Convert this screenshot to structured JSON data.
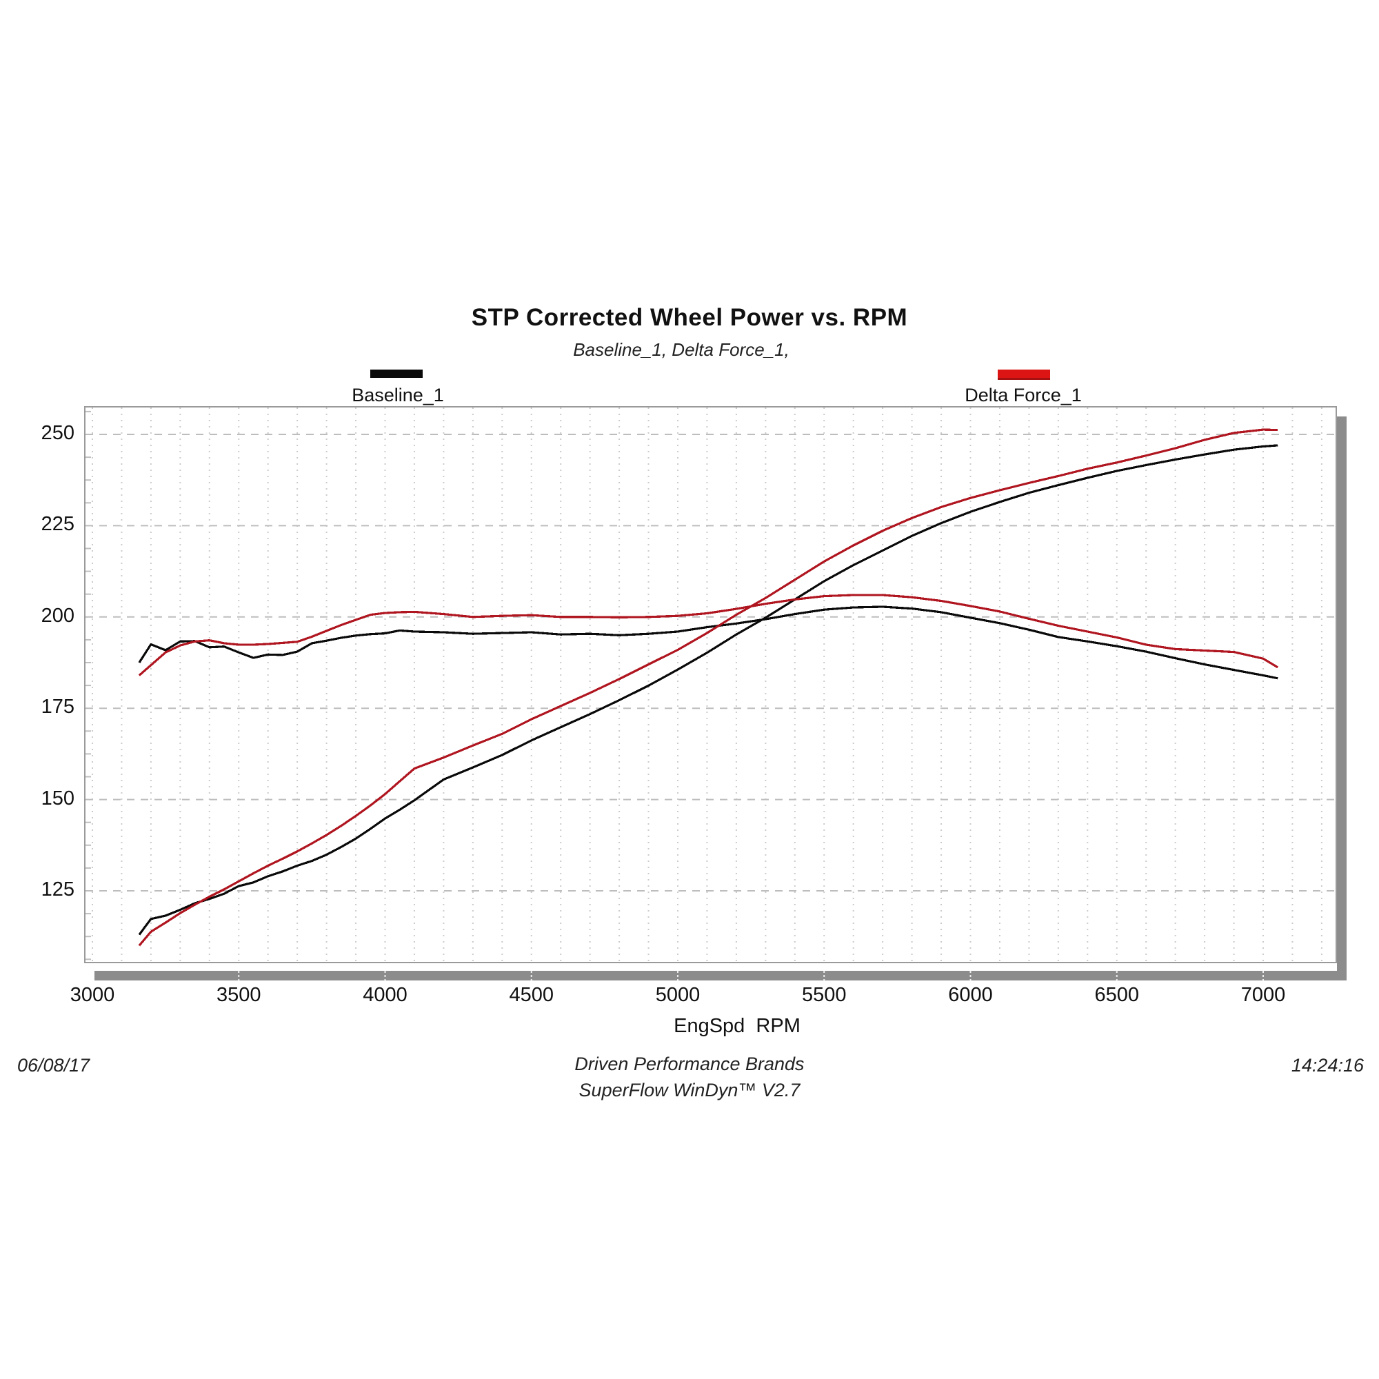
{
  "title": "STP Corrected Wheel Power vs. RPM",
  "subtitle": "Baseline_1, Delta Force_1,",
  "legend": {
    "items": [
      {
        "label": "Baseline_1",
        "color": "#0a0a0a",
        "border": "#000000"
      },
      {
        "label": "Delta Force_1",
        "color": "#dc1414",
        "border": "#a51010"
      }
    ]
  },
  "footer": {
    "date": "06/08/17",
    "time": "14:24:16",
    "brand_line": "Driven Performance Brands",
    "software_line": "SuperFlow WinDyn™ V2.7"
  },
  "chart_data": {
    "type": "line",
    "title": "STP Corrected Wheel Power vs. RPM",
    "xlabel": "EngSpd  RPM",
    "ylabel": "",
    "x_ticks": [
      3000,
      3500,
      4000,
      4500,
      5000,
      5500,
      6000,
      6500,
      7000
    ],
    "y_ticks": [
      125,
      150,
      175,
      200,
      225,
      250
    ],
    "x_minor_step": 100,
    "y_minor_tick_step": 6.25,
    "xlim": [
      2972,
      7255
    ],
    "ylim": [
      103.5,
      258.5
    ],
    "grid": "dashed",
    "legend_position": "top",
    "colors": {
      "baseline": "#0a0a0a",
      "delta_force": "#b01620"
    },
    "x": [
      3160,
      3200,
      3250,
      3300,
      3350,
      3400,
      3450,
      3500,
      3550,
      3600,
      3650,
      3700,
      3750,
      3800,
      3850,
      3900,
      3950,
      4000,
      4050,
      4100,
      4200,
      4300,
      4400,
      4500,
      4600,
      4700,
      4800,
      4900,
      5000,
      5100,
      5200,
      5300,
      5400,
      5500,
      5600,
      5700,
      5800,
      5900,
      6000,
      6100,
      6200,
      6300,
      6400,
      6500,
      6600,
      6700,
      6800,
      6900,
      7000,
      7050
    ],
    "series": [
      {
        "name": "Baseline_1",
        "kind": "power",
        "color": "#0a0a0a",
        "values": [
          113.0,
          117.3,
          118.2,
          119.8,
          121.6,
          122.8,
          124.2,
          126.3,
          127.3,
          129.0,
          130.3,
          131.9,
          133.2,
          134.9,
          137.0,
          139.3,
          142.0,
          144.8,
          147.2,
          149.8,
          155.5,
          158.8,
          162.2,
          166.2,
          169.8,
          173.4,
          177.2,
          181.2,
          185.6,
          190.2,
          195.2,
          199.8,
          204.8,
          209.8,
          214.2,
          218.2,
          222.2,
          225.7,
          228.8,
          231.5,
          234.0,
          236.1,
          238.1,
          240.0,
          241.6,
          243.1,
          244.5,
          245.8,
          246.7,
          247.0
        ]
      },
      {
        "name": "Delta Force_1",
        "kind": "power",
        "color": "#b01620",
        "values": [
          110.0,
          113.8,
          116.3,
          118.9,
          121.2,
          123.4,
          125.4,
          127.6,
          129.8,
          131.9,
          133.8,
          135.8,
          138.0,
          140.3,
          142.8,
          145.5,
          148.4,
          151.5,
          155.0,
          158.5,
          161.5,
          164.8,
          168.0,
          172.0,
          175.6,
          179.2,
          183.0,
          187.0,
          191.0,
          195.6,
          200.6,
          205.2,
          210.2,
          215.2,
          219.6,
          223.6,
          227.1,
          230.1,
          232.6,
          234.7,
          236.7,
          238.6,
          240.6,
          242.3,
          244.2,
          246.2,
          248.5,
          250.4,
          251.3,
          251.2
        ]
      },
      {
        "name": "Baseline_1",
        "kind": "torque",
        "color": "#0a0a0a",
        "values": [
          187.5,
          192.5,
          190.9,
          193.3,
          193.4,
          191.7,
          191.9,
          190.3,
          188.8,
          189.7,
          189.6,
          190.5,
          192.8,
          193.5,
          194.3,
          194.9,
          195.3,
          195.5,
          196.3,
          196.0,
          195.8,
          195.4,
          195.6,
          195.8,
          195.2,
          195.4,
          195.0,
          195.4,
          196.0,
          197.2,
          198.2,
          199.4,
          200.8,
          202.0,
          202.6,
          202.8,
          202.3,
          201.3,
          199.8,
          198.3,
          196.5,
          194.5,
          193.3,
          192.0,
          190.5,
          188.7,
          187.0,
          185.5,
          184.0,
          183.2
        ]
      },
      {
        "name": "Delta Force_1",
        "kind": "torque",
        "color": "#b01620",
        "values": [
          184.0,
          186.8,
          190.3,
          192.2,
          193.3,
          193.6,
          192.8,
          192.4,
          192.4,
          192.6,
          192.9,
          193.2,
          194.6,
          196.2,
          197.8,
          199.2,
          200.6,
          201.1,
          201.3,
          201.4,
          200.8,
          200.0,
          200.3,
          200.5,
          200.0,
          200.0,
          199.9,
          200.0,
          200.3,
          201.0,
          202.2,
          203.6,
          204.8,
          205.7,
          206.0,
          206.0,
          205.4,
          204.4,
          203.0,
          201.5,
          199.5,
          197.6,
          196.0,
          194.4,
          192.4,
          191.2,
          190.8,
          190.4,
          188.6,
          186.2
        ]
      }
    ]
  }
}
